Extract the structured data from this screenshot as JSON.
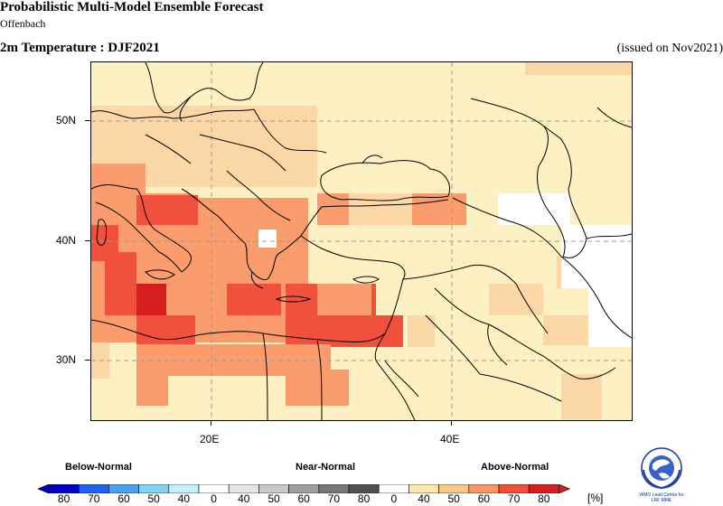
{
  "header": {
    "title": "Probabilistic Multi-Model Ensemble Forecast",
    "subtitle": "Offenbach",
    "variable": "2m Temperature : DJF2021",
    "issued": "(issued on Nov2021)"
  },
  "map": {
    "lat_labels": [
      "50N",
      "40N",
      "30N"
    ],
    "lon_labels": [
      "20E",
      "40E"
    ],
    "extent": {
      "lon": [
        10,
        55
      ],
      "lat": [
        25,
        55
      ]
    }
  },
  "legend": {
    "categories": [
      "Below-Normal",
      "Near-Normal",
      "Above-Normal"
    ],
    "numbers": [
      "80",
      "70",
      "60",
      "50",
      "40",
      "0",
      "40",
      "50",
      "60",
      "70",
      "80",
      "0",
      "40",
      "50",
      "60",
      "70",
      "80"
    ],
    "unit": "[%]",
    "colors": [
      "#0000c8",
      "#1e64f0",
      "#4ba0f5",
      "#82d2f5",
      "#c4f0fa",
      "#ffffff",
      "#e6e6e6",
      "#c8c8c8",
      "#a0a0a0",
      "#787878",
      "#505050",
      "#ffffff",
      "#fde7ae",
      "#fcc88a",
      "#fa9664",
      "#f0503c",
      "#d71e1e"
    ]
  },
  "logo": {
    "line1": "WMO Lead Centre for",
    "line2": "LRF MME"
  },
  "colors": {
    "background_class": "#fdf1c4",
    "class_50": "#fcd7a6",
    "class_60": "#fa9c6c",
    "class_70": "#f0503c",
    "class_80": "#d71e1e"
  }
}
